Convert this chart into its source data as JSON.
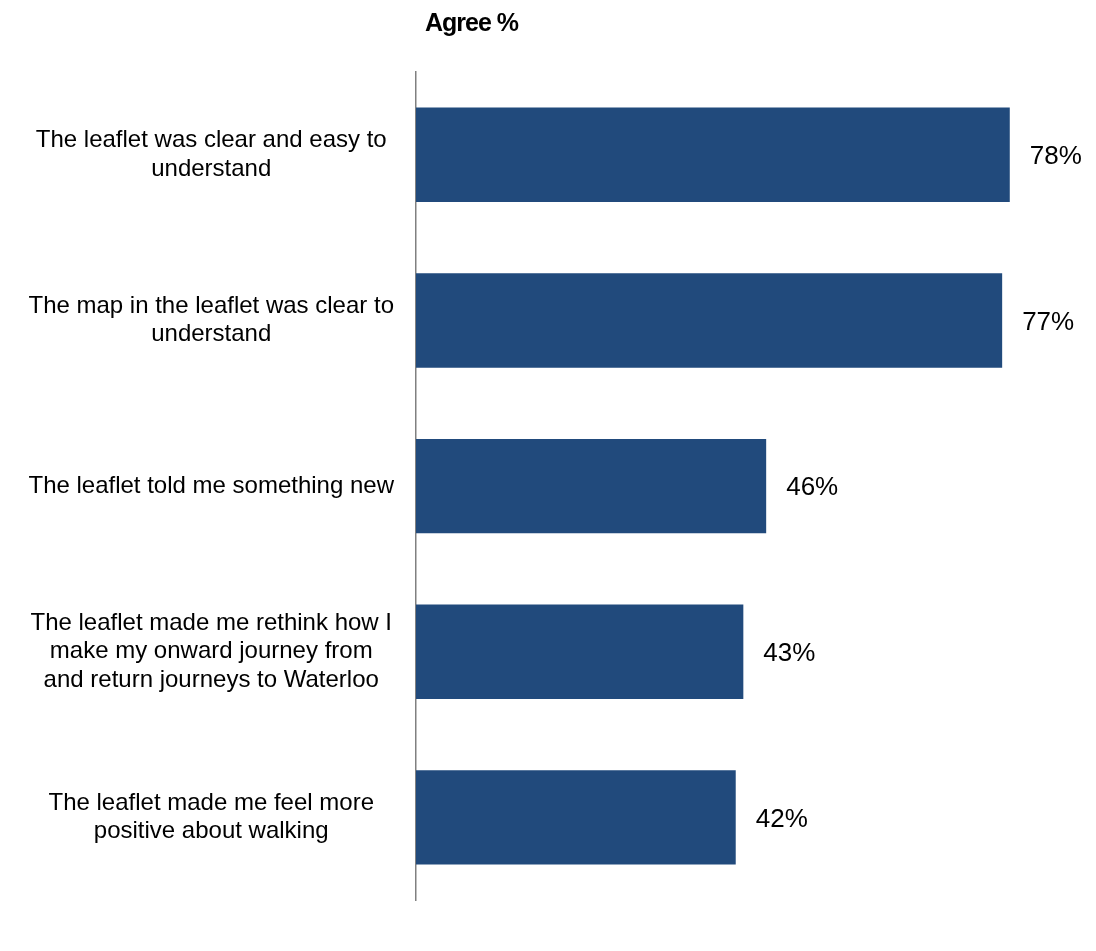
{
  "chart_data": {
    "type": "bar",
    "orientation": "horizontal",
    "title": "Agree %",
    "categories": [
      "The leaflet was clear and easy to understand",
      "The map in the leaflet was clear to understand",
      "The leaflet told me something new",
      "The leaflet made me rethink how I make my onward journey from and return journeys to Waterloo",
      "The leaflet made me feel more positive about walking"
    ],
    "values": [
      78,
      77,
      46,
      43,
      42
    ],
    "value_labels": [
      "78%",
      "77%",
      "46%",
      "43%",
      "42%"
    ],
    "color": "#214a7c",
    "legend": false
  }
}
